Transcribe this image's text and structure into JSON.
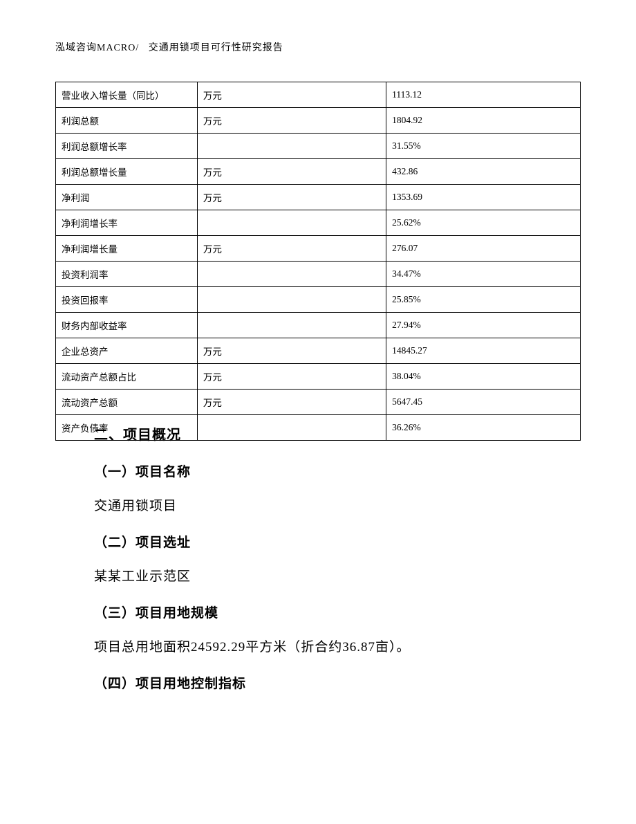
{
  "header": {
    "left": "泓域咨询MACRO/",
    "right": "交通用锁项目可行性研究报告"
  },
  "table": {
    "rows": [
      {
        "label": "营业收入增长量（同比）",
        "unit": "万元",
        "value": "1113.12"
      },
      {
        "label": "利润总额",
        "unit": "万元",
        "value": "1804.92"
      },
      {
        "label": "利润总额增长率",
        "unit": "",
        "value": "31.55%"
      },
      {
        "label": "利润总额增长量",
        "unit": "万元",
        "value": "432.86"
      },
      {
        "label": "净利润",
        "unit": "万元",
        "value": "1353.69"
      },
      {
        "label": "净利润增长率",
        "unit": "",
        "value": "25.62%"
      },
      {
        "label": "净利润增长量",
        "unit": "万元",
        "value": "276.07"
      },
      {
        "label": "投资利润率",
        "unit": "",
        "value": "34.47%"
      },
      {
        "label": "投资回报率",
        "unit": "",
        "value": "25.85%"
      },
      {
        "label": "财务内部收益率",
        "unit": "",
        "value": "27.94%"
      },
      {
        "label": "企业总资产",
        "unit": "万元",
        "value": "14845.27"
      },
      {
        "label": "流动资产总额占比",
        "unit": "万元",
        "value": "38.04%"
      },
      {
        "label": "流动资产总额",
        "unit": "万元",
        "value": "5647.45"
      },
      {
        "label": "资产负债率",
        "unit": "",
        "value": "36.26%"
      }
    ]
  },
  "sections": {
    "main_heading": "二、项目概况",
    "s1_heading": "（一）项目名称",
    "s1_body": "交通用锁项目",
    "s2_heading": "（二）项目选址",
    "s2_body": "某某工业示范区",
    "s3_heading": "（三）项目用地规模",
    "s3_body": "项目总用地面积24592.29平方米（折合约36.87亩）。",
    "s4_heading": "（四）项目用地控制指标"
  }
}
